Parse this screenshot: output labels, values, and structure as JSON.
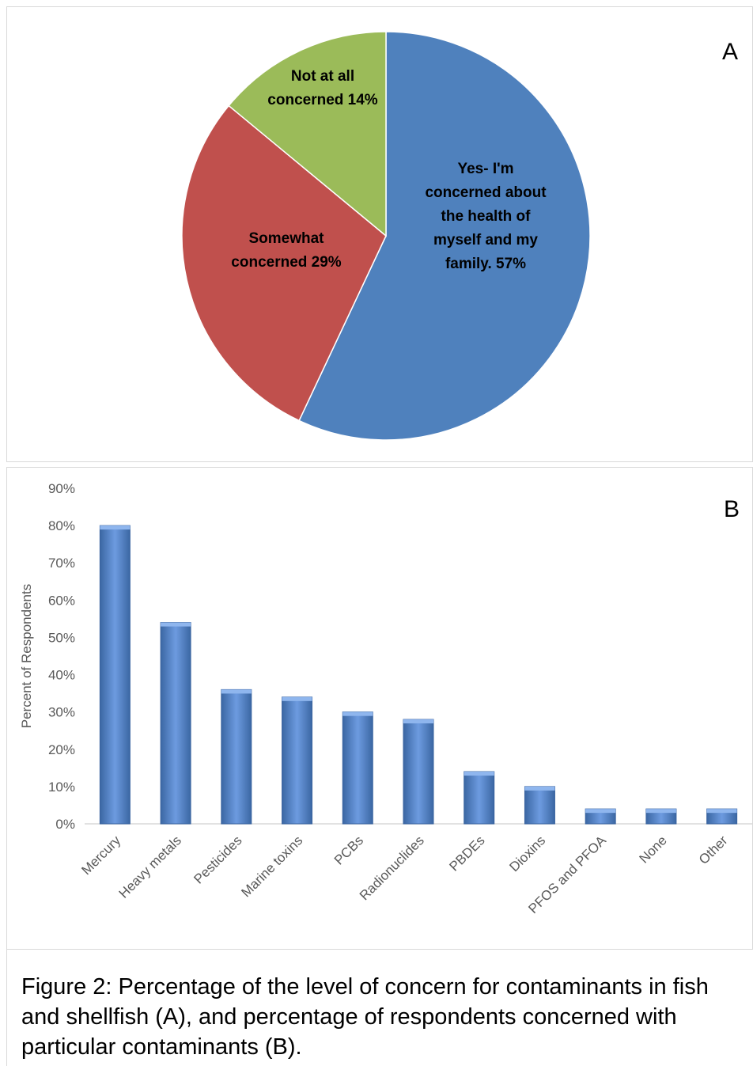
{
  "panel_a": {
    "letter": "A"
  },
  "panel_b": {
    "letter": "B"
  },
  "caption": "Figure 2: Percentage of the level of concern for contaminants in fish and shellfish (A), and percentage of respondents concerned with particular contaminants (B).",
  "chart_data": [
    {
      "type": "pie",
      "start_angle_deg": 0,
      "direction": "clockwise",
      "slices": [
        {
          "label_lines": [
            "Yes- I'm",
            "concerned about",
            "the health of",
            "myself and my",
            "family. 57%"
          ],
          "value": 57,
          "color": "#4f81bd"
        },
        {
          "label_lines": [
            "Somewhat",
            "concerned 29%"
          ],
          "value": 29,
          "color": "#c0504d"
        },
        {
          "label_lines": [
            "Not at all",
            "concerned 14%"
          ],
          "value": 14,
          "color": "#9bbb59"
        }
      ]
    },
    {
      "type": "bar",
      "categories": [
        "Mercury",
        "Heavy metals",
        "Pesticides",
        "Marine toxins",
        "PCBs",
        "Radionuclides",
        "PBDEs",
        "Dioxins",
        "PFOS and PFOA",
        "None",
        "Other"
      ],
      "values": [
        80,
        54,
        36,
        34,
        30,
        28,
        14,
        10,
        4,
        4,
        4
      ],
      "ylabel": "Percent of Respondents",
      "ylim": [
        0,
        90
      ],
      "yticks": [
        0,
        10,
        20,
        30,
        40,
        50,
        60,
        70,
        80,
        90
      ],
      "ytick_format": "%",
      "grid": false,
      "bar_color": "#4f81bd"
    }
  ]
}
